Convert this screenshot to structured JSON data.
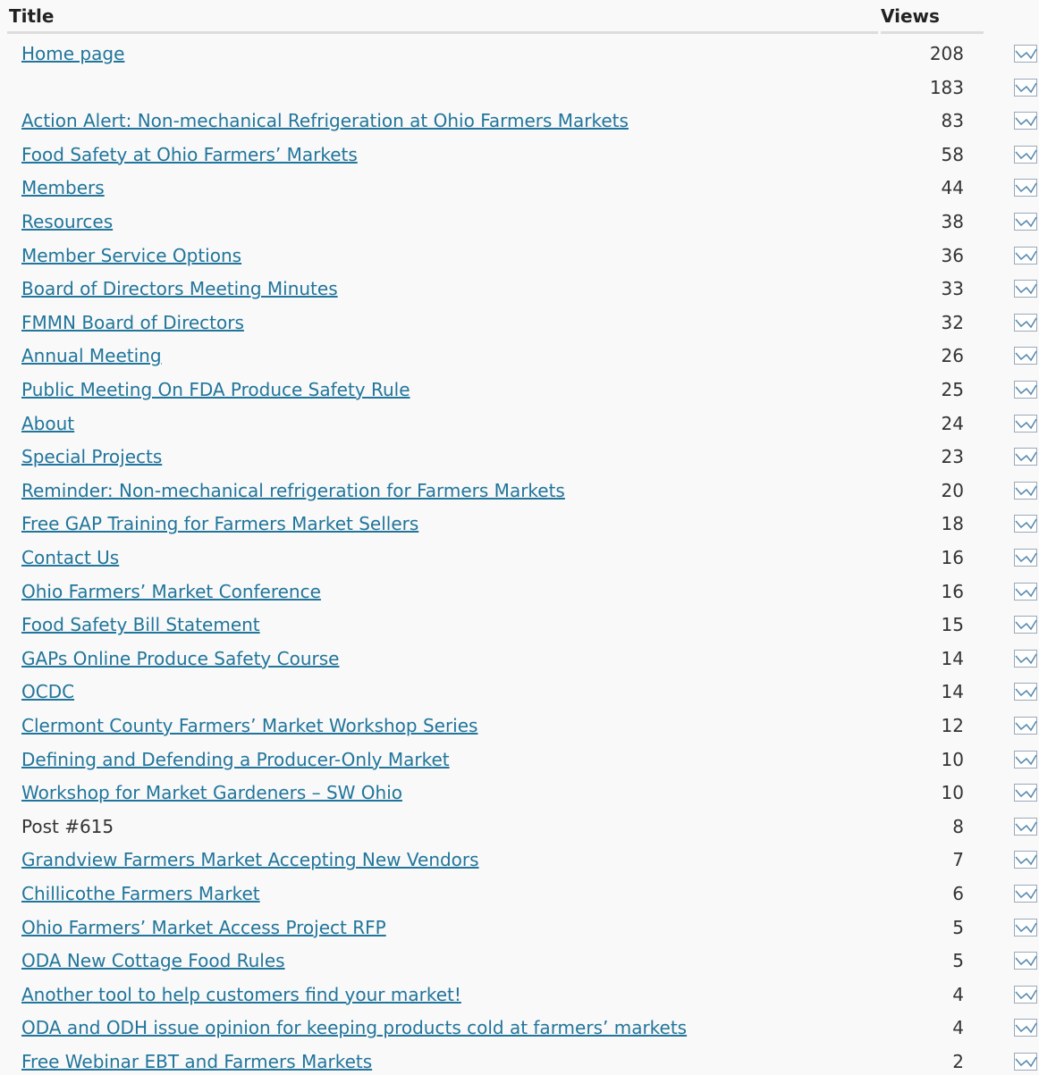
{
  "table": {
    "headers": [
      "Title",
      "Views"
    ],
    "rows": [
      {
        "title": "Home page",
        "views": 208,
        "link": true
      },
      {
        "title": null,
        "views": 183,
        "link": false
      },
      {
        "title": "Action Alert: Non-mechanical Refrigeration at Ohio Farmers Markets",
        "views": 83,
        "link": true
      },
      {
        "title": "Food Safety at Ohio Farmers’ Markets",
        "views": 58,
        "link": true
      },
      {
        "title": "Members",
        "views": 44,
        "link": true
      },
      {
        "title": "Resources",
        "views": 38,
        "link": true
      },
      {
        "title": "Member Service Options",
        "views": 36,
        "link": true
      },
      {
        "title": "Board of Directors Meeting Minutes",
        "views": 33,
        "link": true
      },
      {
        "title": "FMMN Board of Directors",
        "views": 32,
        "link": true
      },
      {
        "title": "Annual Meeting",
        "views": 26,
        "link": true
      },
      {
        "title": "Public Meeting On FDA Produce Safety Rule",
        "views": 25,
        "link": true
      },
      {
        "title": "About",
        "views": 24,
        "link": true
      },
      {
        "title": "Special Projects",
        "views": 23,
        "link": true
      },
      {
        "title": "Reminder: Non-mechanical refrigeration for Farmers Markets",
        "views": 20,
        "link": true
      },
      {
        "title": "Free GAP Training for Farmers Market Sellers",
        "views": 18,
        "link": true
      },
      {
        "title": "Contact Us",
        "views": 16,
        "link": true
      },
      {
        "title": "Ohio Farmers’ Market Conference",
        "views": 16,
        "link": true
      },
      {
        "title": "Food Safety Bill Statement",
        "views": 15,
        "link": true
      },
      {
        "title": "GAPs Online Produce Safety Course",
        "views": 14,
        "link": true
      },
      {
        "title": "OCDC",
        "views": 14,
        "link": true
      },
      {
        "title": "Clermont County Farmers’ Market Workshop Series",
        "views": 12,
        "link": true
      },
      {
        "title": "Defining and Defending a Producer-Only Market",
        "views": 10,
        "link": true
      },
      {
        "title": "Workshop for Market Gardeners – SW Ohio",
        "views": 10,
        "link": true
      },
      {
        "title": "Post #615",
        "views": 8,
        "link": false
      },
      {
        "title": "Grandview Farmers Market Accepting New Vendors",
        "views": 7,
        "link": true
      },
      {
        "title": "Chillicothe Farmers Market",
        "views": 6,
        "link": true
      },
      {
        "title": "Ohio Farmers’ Market Access Project RFP",
        "views": 5,
        "link": true
      },
      {
        "title": "ODA New Cottage Food Rules",
        "views": 5,
        "link": true
      },
      {
        "title": "Another tool to help customers find your market!",
        "views": 4,
        "link": true
      },
      {
        "title": "ODA and ODH issue opinion for keeping products cold at farmers’ markets",
        "views": 4,
        "link": true
      },
      {
        "title": "Free Webinar EBT and Farmers Markets",
        "views": 2,
        "link": true
      }
    ]
  }
}
